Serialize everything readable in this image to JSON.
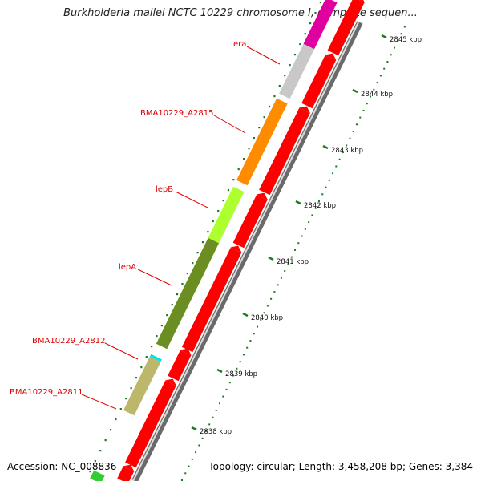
{
  "title": "Burkholderia mallei NCTC 10229 chromosome I, complete sequen...",
  "footer": {
    "accession": "Accession: NC_008836",
    "topology": "Topology: circular; Length: 3,458,208 bp; Genes: 3,384"
  },
  "genes": [
    {
      "label": "era",
      "color": "#c8c8c8"
    },
    {
      "label": "BMA10229_A2815",
      "color": "#ff8c00"
    },
    {
      "label": "lepB",
      "color": "#adff2f"
    },
    {
      "label": "lepA",
      "color": "#6b8e23"
    },
    {
      "label": "BMA10229_A2812",
      "color": "#00e5ee"
    },
    {
      "label": "BMA10229_A2811",
      "color": "#bdb76b"
    }
  ],
  "colors": {
    "label_red": "#e00000",
    "cds_red": "#ff0000",
    "backbone": "#808080",
    "tick_green": "#1e7a1e",
    "top_magenta": "#e000a0"
  },
  "kbp_ticks": [
    "2838 kbp",
    "2839 kbp",
    "2840 kbp",
    "2841 kbp",
    "2842 kbp",
    "2843 kbp",
    "2844 kbp",
    "2845 kbp"
  ]
}
